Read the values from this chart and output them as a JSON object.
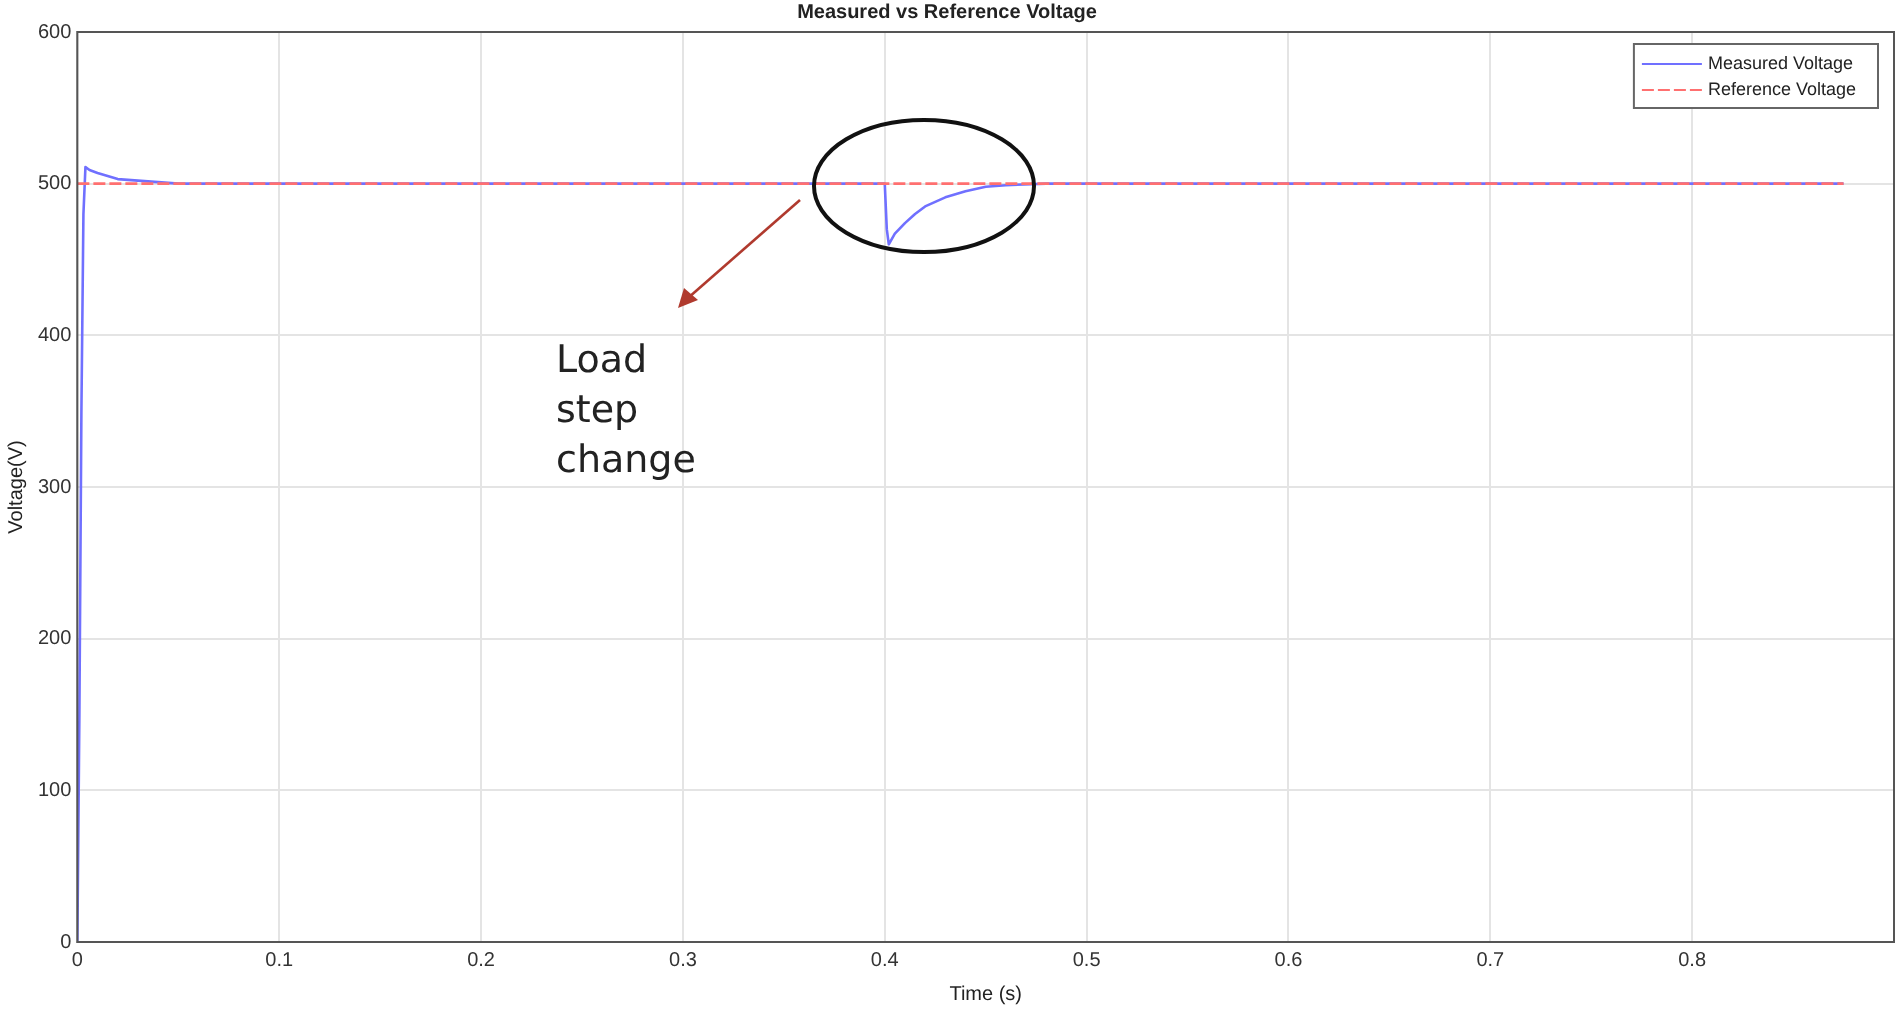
{
  "chart_data": {
    "type": "line",
    "title": "Measured vs Reference Voltage",
    "xlabel": "Time (s)",
    "ylabel": "Voltage(V)",
    "xlim": [
      0,
      0.9
    ],
    "xticks": [
      0,
      0.1,
      0.2,
      0.3,
      0.4,
      0.5,
      0.6,
      0.7,
      0.8
    ],
    "ylim": [
      0,
      600
    ],
    "yticks": [
      0,
      100,
      200,
      300,
      400,
      500,
      600
    ],
    "grid": true,
    "legend": "top right",
    "marker": "none",
    "series": [
      {
        "name": "Measured Voltage",
        "color": "#7070ff",
        "line_style": "solid",
        "x": [
          0,
          0.001,
          0.002,
          0.003,
          0.004,
          0.006,
          0.01,
          0.015,
          0.02,
          0.03,
          0.04,
          0.05,
          0.07,
          0.1,
          0.2,
          0.3,
          0.4,
          0.401,
          0.402,
          0.405,
          0.41,
          0.415,
          0.42,
          0.43,
          0.44,
          0.45,
          0.46,
          0.48,
          0.5,
          0.6,
          0.7,
          0.8,
          0.875
        ],
        "values": [
          0,
          150,
          350,
          480,
          511,
          509,
          507,
          505,
          503,
          502,
          501,
          500,
          500,
          500,
          500,
          500,
          500,
          470,
          460,
          467,
          474,
          480,
          485,
          491,
          495,
          498,
          499,
          500,
          500,
          500,
          500,
          500,
          500
        ]
      },
      {
        "name": "Reference Voltage",
        "color": "#ff7070",
        "line_style": "dashed",
        "x": [
          0,
          0.875
        ],
        "values": [
          500,
          500
        ]
      }
    ],
    "annotations": [
      "Load step change"
    ]
  }
}
